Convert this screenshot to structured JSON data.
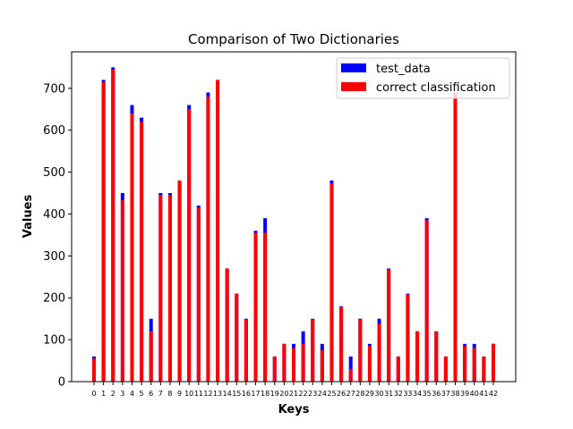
{
  "chart_data": {
    "type": "bar",
    "title": "Comparison of Two Dictionaries",
    "xlabel": "Keys",
    "ylabel": "Values",
    "ylim": [
      0,
      787
    ],
    "yticks": [
      0,
      100,
      200,
      300,
      400,
      500,
      600,
      700
    ],
    "categories": [
      "0",
      "1",
      "2",
      "3",
      "4",
      "5",
      "6",
      "7",
      "8",
      "9",
      "10",
      "11",
      "12",
      "13",
      "14",
      "15",
      "16",
      "17",
      "18",
      "19",
      "20",
      "21",
      "22",
      "23",
      "24",
      "25",
      "26",
      "27",
      "28",
      "29",
      "30",
      "31",
      "32",
      "33",
      "34",
      "35",
      "36",
      "37",
      "38",
      "39",
      "40",
      "41",
      "42"
    ],
    "series": [
      {
        "name": "test_data",
        "color": "#0000ff",
        "values": [
          60,
          720,
          750,
          450,
          660,
          630,
          150,
          450,
          450,
          480,
          660,
          420,
          690,
          720,
          270,
          210,
          150,
          360,
          390,
          60,
          90,
          90,
          120,
          150,
          90,
          480,
          180,
          60,
          150,
          90,
          150,
          270,
          60,
          210,
          120,
          390,
          120,
          60,
          690,
          90,
          90,
          60,
          90
        ]
      },
      {
        "name": "correct classification",
        "color": "#ff0000",
        "values": [
          55,
          715,
          745,
          433,
          640,
          620,
          120,
          445,
          445,
          480,
          650,
          415,
          680,
          720,
          270,
          210,
          148,
          355,
          355,
          60,
          90,
          80,
          90,
          148,
          75,
          473,
          178,
          30,
          148,
          85,
          138,
          268,
          60,
          208,
          120,
          385,
          120,
          60,
          690,
          85,
          80,
          60,
          90
        ]
      }
    ],
    "legend": {
      "position": "top-right"
    },
    "grid": false
  }
}
